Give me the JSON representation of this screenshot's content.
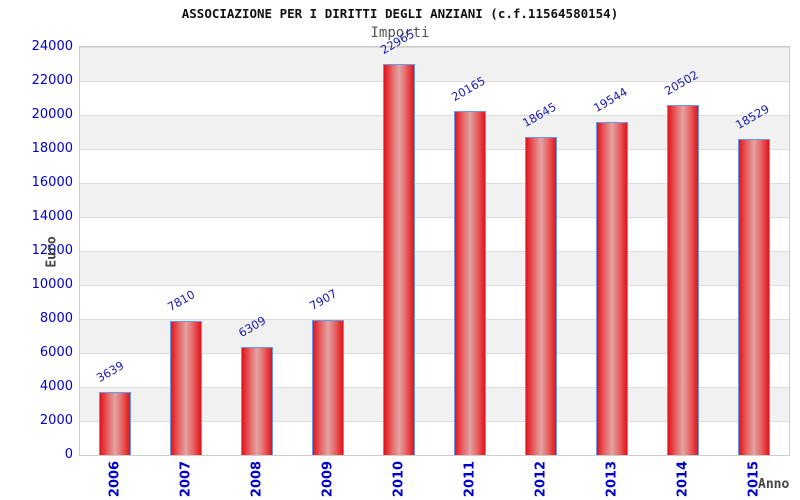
{
  "header": {
    "title": "ASSOCIAZIONE PER I DIRITTI DEGLI ANZIANI (c.f.11564580154)",
    "subtitle": "Importi"
  },
  "chart_data": {
    "type": "bar",
    "title": "ASSOCIAZIONE PER I DIRITTI DEGLI ANZIANI (c.f.11564580154)",
    "subtitle": "Importi",
    "xlabel": "Anno",
    "ylabel": "Euro",
    "categories": [
      "2006",
      "2007",
      "2008",
      "2009",
      "2010",
      "2011",
      "2012",
      "2013",
      "2014",
      "2015"
    ],
    "values": [
      3639,
      7810,
      6309,
      7907,
      22965,
      20165,
      18645,
      19544,
      20502,
      18529
    ],
    "ylim": [
      0,
      24000
    ],
    "ytick_step": 2000,
    "ytick_labels": [
      "0",
      "2000",
      "4000",
      "6000",
      "8000",
      "10000",
      "12000",
      "14000",
      "16000",
      "18000",
      "20000",
      "22000",
      "24000"
    ],
    "grid": "horizontal-bands",
    "legend": "none",
    "colors": {
      "bar_edge": "#e2141c",
      "bar_center": "#e2a4a4",
      "bar_border": "#6699eb",
      "tick_text": "#0000cd",
      "value_label_text": "#1a1ab0",
      "band_gray": "#f1f1f1",
      "band_white": "#ffffff",
      "gridline": "#dcdcdc",
      "title_text": "#111111",
      "subtitle_text": "#555555",
      "axis_title_text": "#444444"
    }
  }
}
